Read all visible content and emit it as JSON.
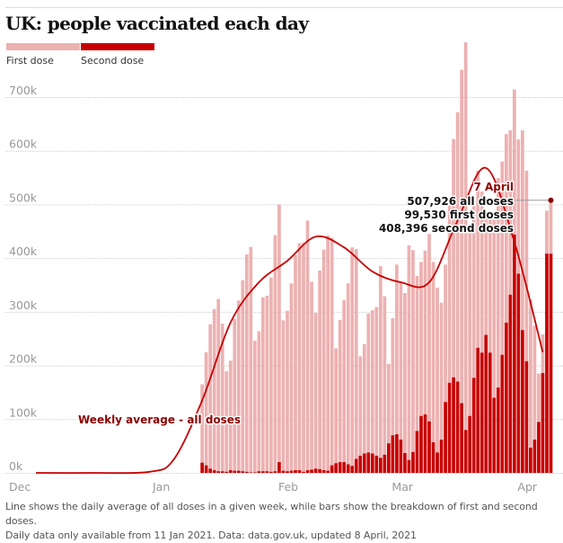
{
  "header": {
    "title": "UK: people vaccinated each day"
  },
  "legend": [
    {
      "label": "First dose",
      "color": "#ecb1b1"
    },
    {
      "label": "Second dose",
      "color": "#c70000"
    }
  ],
  "colors": {
    "first_dose": "#ecb1b1",
    "second_dose": "#c70000",
    "line": "#c70000",
    "annotation_text": "#8b0000",
    "grid": "#cccccc",
    "axis_text": "#999999"
  },
  "annotations": {
    "line_label": "Weekly average - all doses",
    "callout_date": "7 April",
    "callout_lines": [
      "507,926 all doses",
      "99,530 first doses",
      "408,396 second doses"
    ]
  },
  "footnote": {
    "line1": "Line shows the daily average of all doses in a given week, while bars show the breakdown of first and second doses.",
    "line2": "Daily data only available from 11 Jan 2021. Data: data.gov.uk, updated 8 April, 2021"
  },
  "chart_data": {
    "type": "bar",
    "title": "UK: people vaccinated each day",
    "xlabel": "",
    "ylabel": "",
    "ylim": [
      0,
      700000
    ],
    "yticks": [
      0,
      100000,
      200000,
      300000,
      400000,
      500000,
      600000,
      700000
    ],
    "ytick_labels": [
      "0k",
      "100k",
      "200k",
      "300k",
      "400k",
      "500k",
      "600k",
      "700k"
    ],
    "xticks": [
      "Dec",
      "Jan",
      "Feb",
      "Mar",
      "Apr"
    ],
    "x_range": [
      "2020-12-01",
      "2021-04-08"
    ],
    "grid": true,
    "legend_position": "top-left",
    "bars_start_date": "2021-01-11",
    "bars_end_date": "2021-04-07",
    "series": [
      {
        "name": "First dose",
        "stack": true,
        "values": [
          146000,
          211000,
          269000,
          300000,
          321000,
          275000,
          187000,
          204000,
          283000,
          317000,
          356000,
          405000,
          420000,
          245000,
          261000,
          324000,
          327000,
          362000,
          440000,
          480000,
          280000,
          299000,
          349000,
          401000,
          423000,
          427000,
          465000,
          350000,
          290000,
          370000,
          411000,
          438000,
          424000,
          214000,
          265000,
          302000,
          337000,
          407000,
          391000,
          185000,
          204000,
          259000,
          267000,
          277000,
          357000,
          295000,
          148000,
          218000,
          316000,
          294000,
          298000,
          400000,
          376000,
          289000,
          287000,
          305000,
          349000,
          336000,
          307000,
          255000,
          256000,
          344000,
          444000,
          502000,
          621000,
          722000,
          342000,
          320000,
          330000,
          300000,
          230000,
          260000,
          332000,
          390000,
          360000,
          351000,
          306000,
          270000,
          250000,
          372000,
          355000,
          276000,
          212000,
          90000,
          72000,
          80000,
          99530
        ],
        "color": "#ecb1b1"
      },
      {
        "name": "Second dose",
        "stack": true,
        "values": [
          19000,
          14000,
          8000,
          5000,
          3000,
          3000,
          2000,
          5000,
          4000,
          4000,
          3000,
          2000,
          1000,
          1000,
          3000,
          3000,
          3000,
          2000,
          3000,
          20000,
          4000,
          3000,
          4000,
          5000,
          5000,
          2000,
          5000,
          6000,
          8000,
          7000,
          5000,
          4000,
          14000,
          18000,
          20000,
          20000,
          16000,
          13000,
          26000,
          32000,
          36000,
          38000,
          36000,
          32000,
          28000,
          34000,
          55000,
          70000,
          72000,
          62000,
          37000,
          24000,
          39000,
          78000,
          106000,
          109000,
          96000,
          57000,
          38000,
          62000,
          132000,
          168000,
          178000,
          170000,
          130000,
          80000,
          106000,
          177000,
          233000,
          224000,
          257000,
          224000,
          140000,
          159000,
          220000,
          280000,
          332000,
          444000,
          371000,
          266000,
          208000,
          47000,
          62000,
          95000,
          186000,
          408396,
          408396
        ],
        "color": "#c70000"
      },
      {
        "name": "Weekly average - all doses",
        "type": "line",
        "x_dates": [
          "2020-12-01",
          "2020-12-15",
          "2020-12-29",
          "2021-01-04",
          "2021-01-11",
          "2021-01-18",
          "2021-01-25",
          "2021-02-01",
          "2021-02-08",
          "2021-02-15",
          "2021-02-22",
          "2021-03-01",
          "2021-03-08",
          "2021-03-15",
          "2021-03-22",
          "2021-03-29",
          "2021-04-05"
        ],
        "values": [
          0,
          0,
          2000,
          25000,
          135000,
          280000,
          355000,
          395000,
          440000,
          420000,
          375000,
          355000,
          355000,
          470000,
          568000,
          430000,
          225000
        ],
        "color": "#c70000"
      }
    ],
    "annotations": [
      {
        "text": "Weekly average - all doses",
        "target": "line",
        "x": "2021-01-06"
      },
      {
        "text": "7 April",
        "x": "2021-04-07",
        "y": 507926
      },
      {
        "text": "507,926 all doses",
        "x": "2021-04-07",
        "y": 507926
      },
      {
        "text": "99,530 first doses",
        "x": "2021-04-07"
      },
      {
        "text": "408,396 second doses",
        "x": "2021-04-07"
      }
    ]
  }
}
